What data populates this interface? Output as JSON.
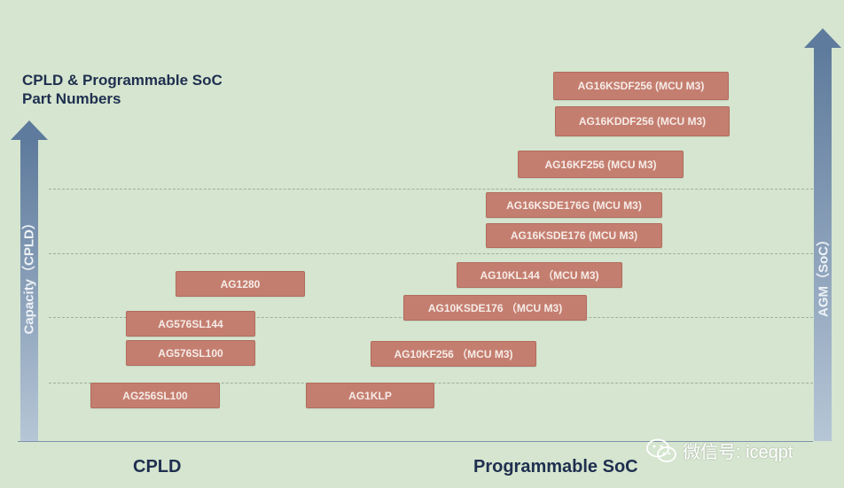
{
  "title": {
    "line1": "CPLD & Programmable SoC",
    "line2": "Part Numbers"
  },
  "axes": {
    "left_label": "Capacity（CPLD）",
    "right_label": "AGM（SoC）"
  },
  "categories": {
    "cpld": "CPLD",
    "soc": "Programmable SoC"
  },
  "cpld_parts": [
    {
      "label": "AG1280"
    },
    {
      "label": "AG576SL144"
    },
    {
      "label": "AG576SL100"
    },
    {
      "label": "AG256SL100"
    }
  ],
  "soc_parts": [
    {
      "label": "AG16KSDF256 (MCU M3)"
    },
    {
      "label": "AG16KDDF256 (MCU M3)"
    },
    {
      "label": "AG16KF256 (MCU M3)"
    },
    {
      "label": "AG16KSDE176G (MCU M3)"
    },
    {
      "label": "AG16KSDE176 (MCU M3)"
    },
    {
      "label": "AG10KL144 （MCU M3)"
    },
    {
      "label": "AG10KSDE176 （MCU M3)"
    },
    {
      "label": "AG10KF256 （MCU M3)"
    },
    {
      "label": "AG1KLP"
    }
  ],
  "watermark": {
    "icon": "wechat-icon",
    "text": "微信号: iceqpt"
  },
  "colors": {
    "background": "#d5e5cf",
    "part_fill": "#c47e6f",
    "arrow_top": "#5e7a9c",
    "arrow_bottom": "#b6c6d6",
    "title_text": "#1f2f4f"
  }
}
